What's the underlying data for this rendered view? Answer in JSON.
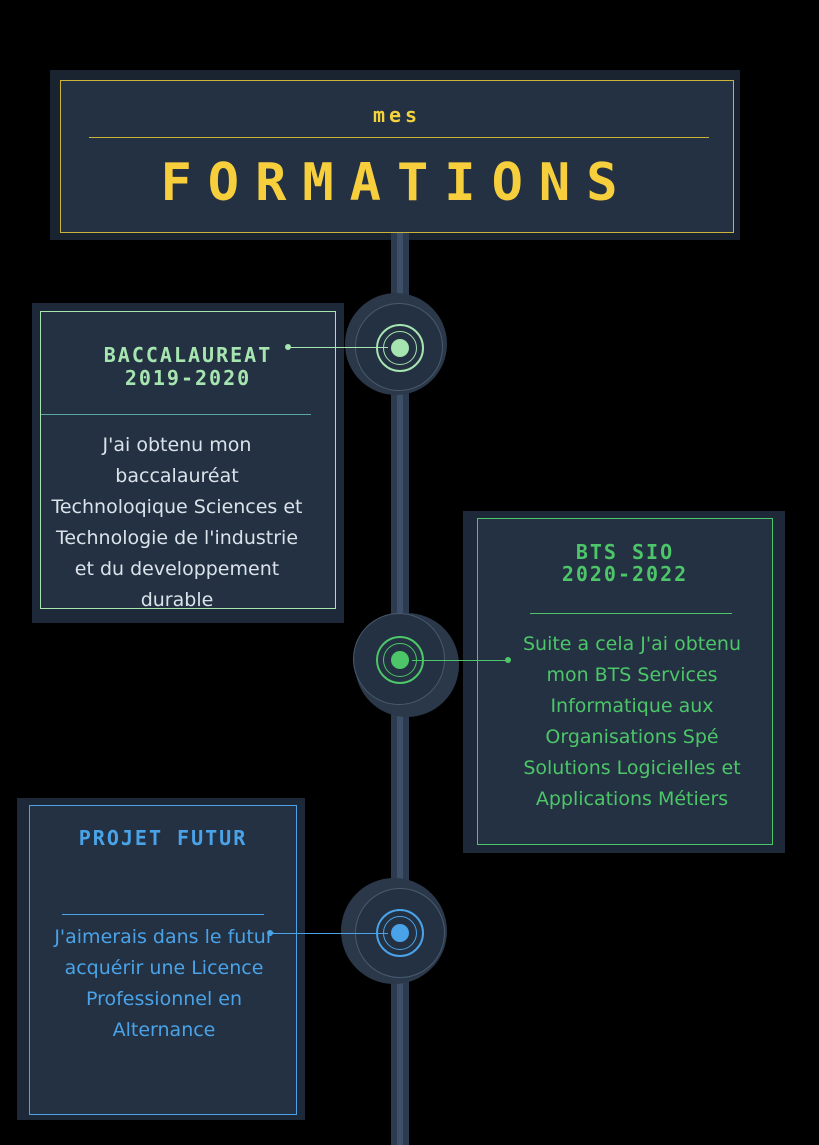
{
  "header": {
    "subtitle": "mes",
    "title": "FORMATIONS"
  },
  "colors": {
    "background": "#000000",
    "panel": "#233142",
    "accent_yellow": "#f7cf3d",
    "accent_mint": "#a6e5b0",
    "accent_green": "#4cc668",
    "accent_blue": "#4aa3e8"
  },
  "entries": [
    {
      "title_line1": "BACCALAUREAT",
      "title_line2": "2019-2020",
      "body": "J'ai obtenu mon baccalauréat Technoloqique Sciences et Technologie de l'industrie et du developpement durable"
    },
    {
      "title_line1": "BTS SIO",
      "title_line2": "2020-2022",
      "body": "Suite a cela J'ai obtenu mon BTS Services Informatique aux Organisations Spé Solutions Logicielles et Applications Métiers"
    },
    {
      "title_line1": "PROJET FUTUR",
      "title_line2": "",
      "body": "J'aimerais dans le futur acquérir une Licence Professionnel en Alternance"
    }
  ]
}
